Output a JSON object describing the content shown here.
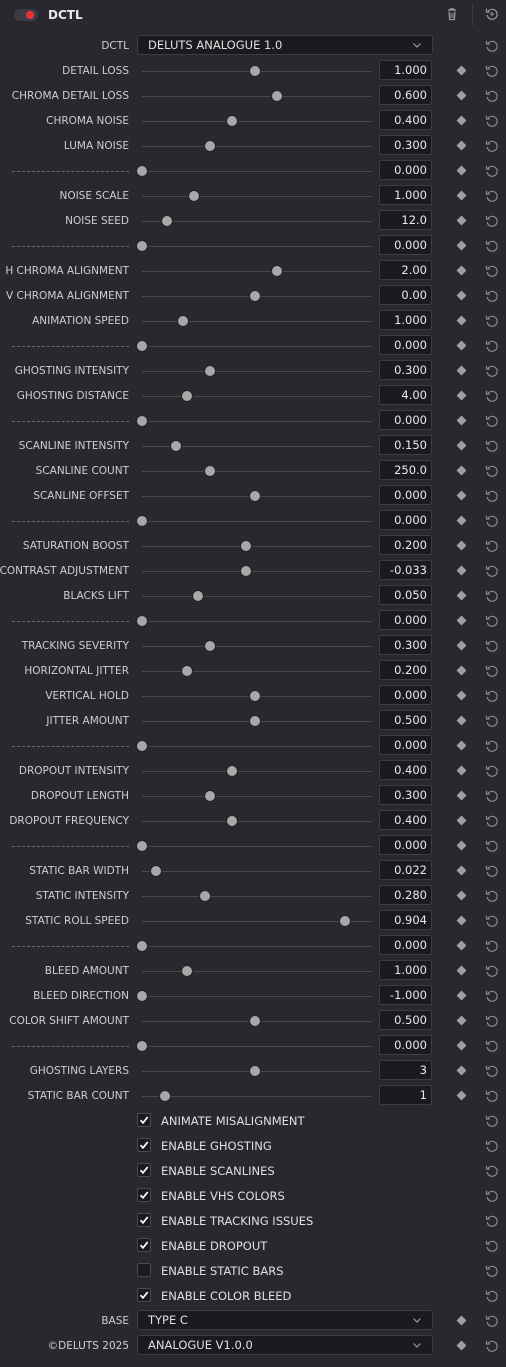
{
  "header": {
    "title": "DCTL",
    "enabled": true
  },
  "dctl": {
    "label": "DCTL",
    "value": "DELUTS ANALOGUE 1.0"
  },
  "params": [
    {
      "label": "DETAIL LOSS",
      "value": "1.000",
      "pos": 0.5
    },
    {
      "label": "CHROMA DETAIL LOSS",
      "value": "0.600",
      "pos": 0.6
    },
    {
      "label": "CHROMA NOISE",
      "value": "0.400",
      "pos": 0.4
    },
    {
      "label": "LUMA NOISE",
      "value": "0.300",
      "pos": 0.3
    },
    {
      "label": "------------------------------",
      "value": "0.000",
      "pos": 0.0,
      "sep": true
    },
    {
      "label": "NOISE SCALE",
      "value": "1.000",
      "pos": 0.23
    },
    {
      "label": "NOISE SEED",
      "value": "12.0",
      "pos": 0.11
    },
    {
      "label": "------------------------------",
      "value": "0.000",
      "pos": 0.0,
      "sep": true
    },
    {
      "label": "H CHROMA ALIGNMENT",
      "value": "2.00",
      "pos": 0.6
    },
    {
      "label": "V CHROMA ALIGNMENT",
      "value": "0.00",
      "pos": 0.5
    },
    {
      "label": "ANIMATION SPEED",
      "value": "1.000",
      "pos": 0.18
    },
    {
      "label": "------------------------------",
      "value": "0.000",
      "pos": 0.0,
      "sep": true
    },
    {
      "label": "GHOSTING INTENSITY",
      "value": "0.300",
      "pos": 0.3
    },
    {
      "label": "GHOSTING DISTANCE",
      "value": "4.00",
      "pos": 0.2
    },
    {
      "label": "------------------------------",
      "value": "0.000",
      "pos": 0.0,
      "sep": true
    },
    {
      "label": "SCANLINE INTENSITY",
      "value": "0.150",
      "pos": 0.15
    },
    {
      "label": "SCANLINE COUNT",
      "value": "250.0",
      "pos": 0.3
    },
    {
      "label": "SCANLINE OFFSET",
      "value": "0.000",
      "pos": 0.5
    },
    {
      "label": "------------------------------",
      "value": "0.000",
      "pos": 0.0,
      "sep": true
    },
    {
      "label": "SATURATION BOOST",
      "value": "0.200",
      "pos": 0.46
    },
    {
      "label": "CONTRAST ADJUSTMENT",
      "value": "-0.033",
      "pos": 0.46
    },
    {
      "label": "BLACKS LIFT",
      "value": "0.050",
      "pos": 0.25
    },
    {
      "label": "------------------------------",
      "value": "0.000",
      "pos": 0.0,
      "sep": true
    },
    {
      "label": "TRACKING SEVERITY",
      "value": "0.300",
      "pos": 0.3
    },
    {
      "label": "HORIZONTAL JITTER",
      "value": "0.200",
      "pos": 0.2
    },
    {
      "label": "VERTICAL HOLD",
      "value": "0.000",
      "pos": 0.5
    },
    {
      "label": "JITTER AMOUNT",
      "value": "0.500",
      "pos": 0.5
    },
    {
      "label": "------------------------------",
      "value": "0.000",
      "pos": 0.0,
      "sep": true
    },
    {
      "label": "DROPOUT INTENSITY",
      "value": "0.400",
      "pos": 0.4
    },
    {
      "label": "DROPOUT LENGTH",
      "value": "0.300",
      "pos": 0.3
    },
    {
      "label": "DROPOUT FREQUENCY",
      "value": "0.400",
      "pos": 0.4
    },
    {
      "label": "------------------------------",
      "value": "0.000",
      "pos": 0.0,
      "sep": true
    },
    {
      "label": "STATIC BAR WIDTH",
      "value": "0.022",
      "pos": 0.06
    },
    {
      "label": "STATIC INTENSITY",
      "value": "0.280",
      "pos": 0.28
    },
    {
      "label": "STATIC ROLL SPEED",
      "value": "0.904",
      "pos": 0.9
    },
    {
      "label": "------------------------------",
      "value": "0.000",
      "pos": 0.0,
      "sep": true
    },
    {
      "label": "BLEED AMOUNT",
      "value": "1.000",
      "pos": 0.2
    },
    {
      "label": "BLEED DIRECTION",
      "value": "-1.000",
      "pos": 0.0
    },
    {
      "label": "COLOR SHIFT AMOUNT",
      "value": "0.500",
      "pos": 0.5
    },
    {
      "label": "------------------------------",
      "value": "0.000",
      "pos": 0.0,
      "sep": true
    },
    {
      "label": "GHOSTING LAYERS",
      "value": "3",
      "pos": 0.5
    },
    {
      "label": "STATIC BAR COUNT",
      "value": "1",
      "pos": 0.1
    }
  ],
  "checkboxes": [
    {
      "label": "ANIMATE MISALIGNMENT",
      "checked": true
    },
    {
      "label": "ENABLE GHOSTING",
      "checked": true
    },
    {
      "label": "ENABLE SCANLINES",
      "checked": true
    },
    {
      "label": "ENABLE VHS COLORS",
      "checked": true
    },
    {
      "label": "ENABLE TRACKING ISSUES",
      "checked": true
    },
    {
      "label": "ENABLE DROPOUT",
      "checked": true
    },
    {
      "label": "ENABLE STATIC BARS",
      "checked": false
    },
    {
      "label": "ENABLE COLOR BLEED",
      "checked": true
    }
  ],
  "base": {
    "label": "BASE",
    "value": "TYPE C"
  },
  "version": {
    "label": "©DELUTS 2025",
    "value": "ANALOGUE V1.0.0"
  },
  "colors": {
    "accent": "#e8333a",
    "background": "#28282e",
    "field": "#1b1b1f"
  },
  "icons": {
    "trash": "trash-icon",
    "reset": "reset-icon",
    "keyframe": "keyframe-icon",
    "chevron": "chevron-down-icon",
    "check": "check-icon"
  }
}
